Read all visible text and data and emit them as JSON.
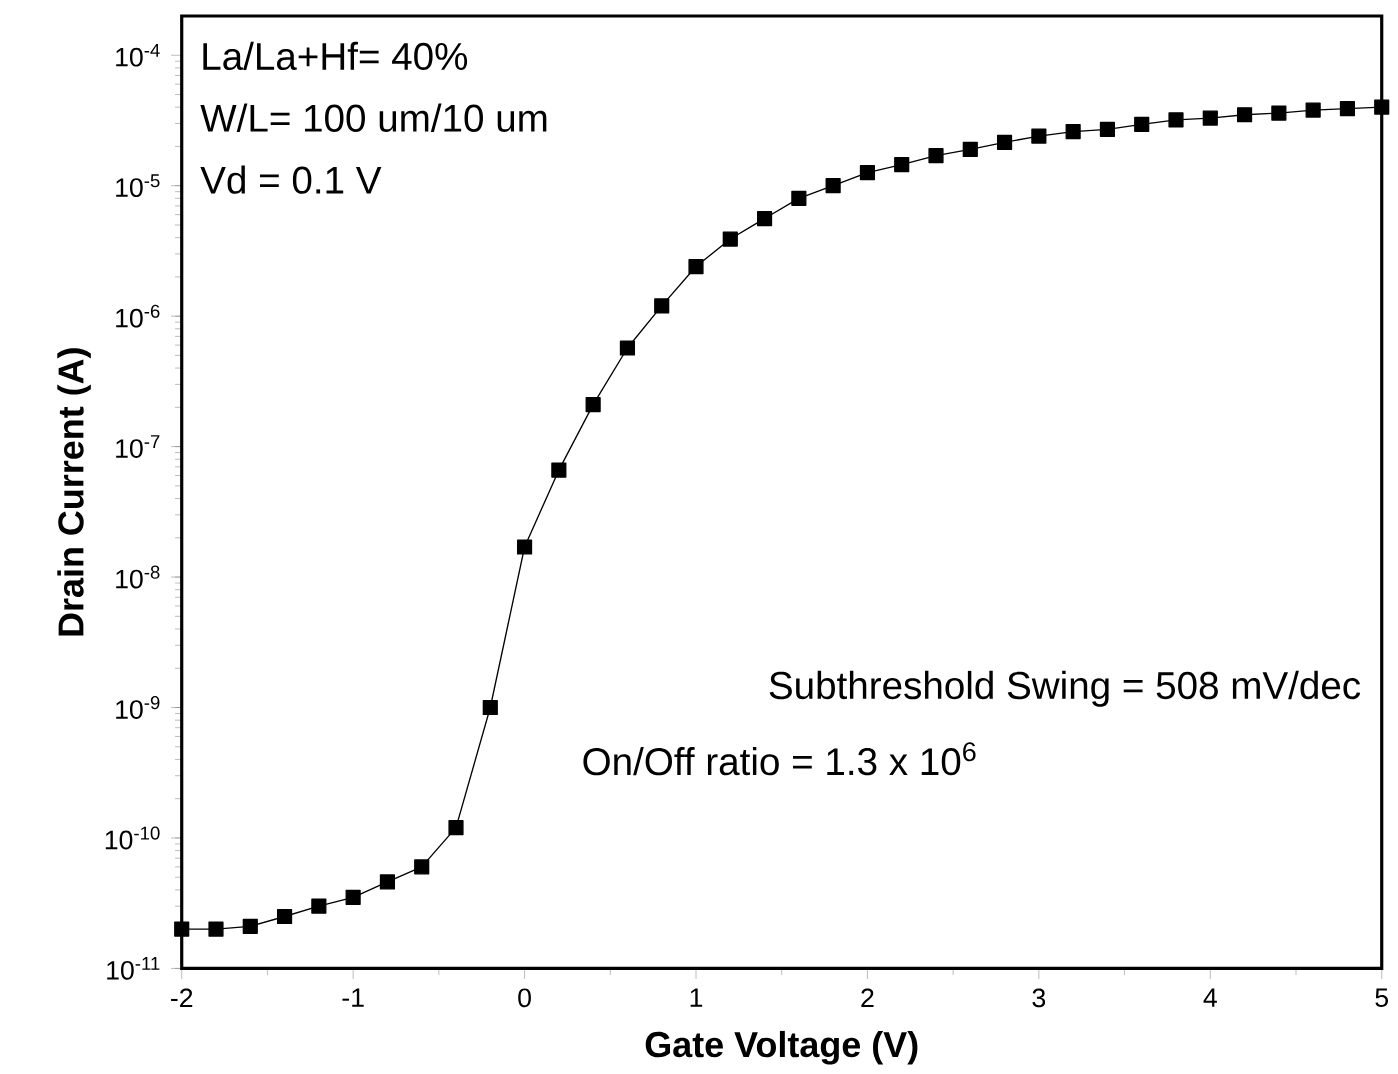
{
  "chart_data": {
    "type": "line",
    "xlabel": "Gate Voltage (V)",
    "ylabel": "Drain Current (A)",
    "x": [
      -2,
      -1.8,
      -1.6,
      -1.4,
      -1.2,
      -1,
      -0.8,
      -0.6,
      -0.4,
      -0.2,
      0,
      0.2,
      0.4,
      0.6,
      0.8,
      1,
      1.2,
      1.4,
      1.6,
      1.8,
      2,
      2.2,
      2.4,
      2.6,
      2.8,
      3,
      3.2,
      3.4,
      3.6,
      3.8,
      4,
      4.2,
      4.4,
      4.6,
      4.8,
      5
    ],
    "series": [
      {
        "color": "#000000",
        "values": [
          2e-11,
          2e-11,
          2.1e-11,
          2.5e-11,
          3e-11,
          3.5e-11,
          4.6e-11,
          6e-11,
          1.2e-10,
          1e-09,
          1.7e-08,
          6.6e-08,
          2.1e-07,
          5.7e-07,
          1.2e-06,
          2.4e-06,
          3.9e-06,
          5.6e-06,
          8e-06,
          1e-05,
          1.26e-05,
          1.45e-05,
          1.7e-05,
          1.9e-05,
          2.15e-05,
          2.4e-05,
          2.6e-05,
          2.7e-05,
          2.95e-05,
          3.2e-05,
          3.3e-05,
          3.5e-05,
          3.6e-05,
          3.8e-05,
          3.9e-05,
          4e-05
        ]
      }
    ],
    "xlim": [
      -2,
      5
    ],
    "xticks": [
      -2,
      -1,
      0,
      1,
      2,
      3,
      4,
      5
    ],
    "ylim": [
      1e-11,
      0.0002
    ],
    "yticks": [
      {
        "value": 1e-11,
        "label": "10$^{-11}$"
      },
      {
        "value": 1e-10,
        "label": "10$^{-10}$"
      },
      {
        "value": 1e-09,
        "label": "10$^{-9}$"
      },
      {
        "value": 1e-08,
        "label": "10$^{-8}$"
      },
      {
        "value": 1e-07,
        "label": "10$^{-7}$"
      },
      {
        "value": 1e-06,
        "label": "10$^{-6}$"
      },
      {
        "value": 1e-05,
        "label": "10$^{-5}$"
      },
      {
        "value": 0.0001,
        "label": "10$^{-4}$"
      }
    ],
    "log": "y",
    "grid": false,
    "marker": "square",
    "line_style": "solid",
    "annotations": [
      "La/La+Hf= 40%",
      "W/L= 100 um/10 um",
      "Vd = 0.1 V",
      "Subthreshold Swing = 508 mV/dec",
      "On/Off ratio =  1.3 x 10$^{6}$"
    ]
  }
}
